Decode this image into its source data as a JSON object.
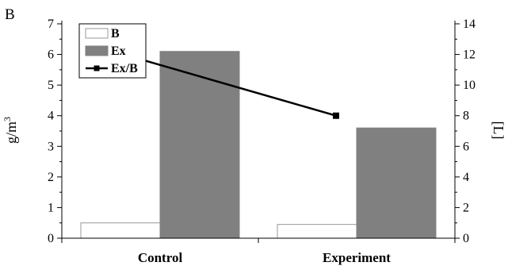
{
  "chart_data": {
    "type": "bar",
    "panel_label": "B",
    "categories": [
      "Control",
      "Experiment"
    ],
    "series": [
      {
        "name": "B",
        "type": "bar",
        "axis": "left",
        "values": [
          0.5,
          0.45
        ],
        "color": "#ffffff",
        "stroke": "#999999"
      },
      {
        "name": "Ex",
        "type": "bar",
        "axis": "left",
        "values": [
          6.1,
          3.6
        ],
        "color": "#808080",
        "stroke": "#808080"
      },
      {
        "name": "Ex/B",
        "type": "line",
        "axis": "right",
        "values": [
          11.7,
          8.0
        ],
        "color": "#000000",
        "marker": "square"
      }
    ],
    "ylabel": "g/m",
    "ylabel_superscript": "3",
    "y2label": "[L]",
    "ylim": [
      0,
      7
    ],
    "y2lim": [
      0,
      14
    ],
    "yticks": [
      "0",
      "1",
      "2",
      "3",
      "4",
      "5",
      "6",
      "7"
    ],
    "y2ticks": [
      "0",
      "2",
      "4",
      "6",
      "8",
      "10",
      "12",
      "14"
    ],
    "grid": false,
    "legend_position": "top-left"
  }
}
